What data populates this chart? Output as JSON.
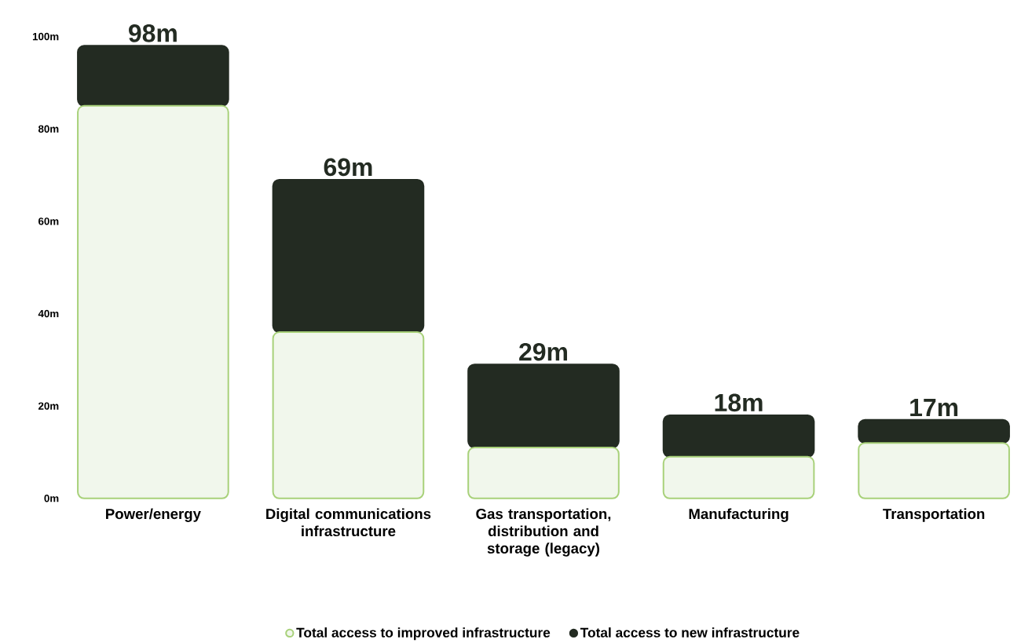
{
  "chart_data": {
    "type": "bar",
    "stacked": true,
    "categories": [
      "Power/energy",
      "Digital communications infrastructure",
      "Gas transportation, distribution and storage (legacy)",
      "Manufacturing",
      "Transportation"
    ],
    "series": [
      {
        "name": "Total access to improved infrastructure",
        "color": "#f1f7ec",
        "values": [
          85,
          36,
          11,
          9,
          12
        ]
      },
      {
        "name": "Total access to new infrastructure",
        "color": "#232b22",
        "values": [
          13,
          33,
          18,
          9,
          5
        ]
      }
    ],
    "totals": [
      "98m",
      "69m",
      "29m",
      "18m",
      "17m"
    ],
    "ylim": [
      0,
      100
    ],
    "yticks": [
      {
        "value": 0,
        "label": "0m"
      },
      {
        "value": 20,
        "label": "20m"
      },
      {
        "value": 40,
        "label": "40m"
      },
      {
        "value": 60,
        "label": "60m"
      },
      {
        "value": 80,
        "label": "80m"
      },
      {
        "value": 100,
        "label": "100m"
      }
    ],
    "grid": false,
    "legend": "bottom"
  }
}
